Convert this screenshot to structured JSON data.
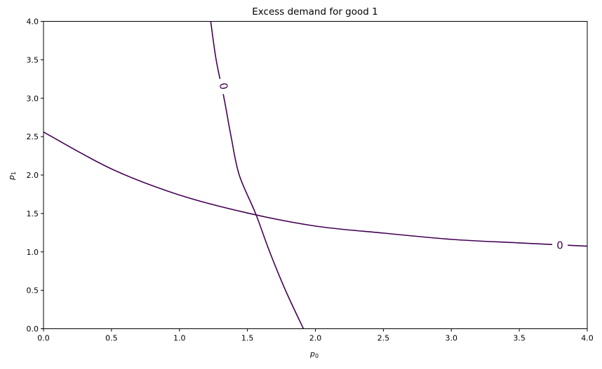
{
  "chart_data": {
    "type": "line",
    "title": "Excess demand for good 1",
    "xlabel": "p",
    "xlabel_sub": "0",
    "ylabel": "p",
    "ylabel_sub": "1",
    "xlim": [
      0,
      4
    ],
    "ylim": [
      0,
      4
    ],
    "xticks": [
      "0.0",
      "0.5",
      "1.0",
      "1.5",
      "2.0",
      "2.5",
      "3.0",
      "3.5",
      "4.0"
    ],
    "yticks": [
      "0.0",
      "0.5",
      "1.0",
      "1.5",
      "2.0",
      "2.5",
      "3.0",
      "3.5",
      "4.0"
    ],
    "grid": false,
    "contour_level": "0",
    "line_color": "#440154",
    "series": [
      {
        "points": [
          [
            1.23,
            4.0
          ],
          [
            1.27,
            3.5
          ],
          [
            1.328,
            3.0
          ],
          [
            1.38,
            2.5
          ],
          [
            1.44,
            2.0
          ],
          [
            1.56,
            1.5
          ],
          [
            1.664,
            1.0
          ],
          [
            1.78,
            0.5
          ],
          [
            1.912,
            0.0
          ]
        ]
      },
      {
        "points": [
          [
            0.0,
            2.56
          ],
          [
            0.5,
            2.08
          ],
          [
            1.0,
            1.74
          ],
          [
            1.5,
            1.506
          ],
          [
            2.0,
            1.336
          ],
          [
            2.5,
            1.245
          ],
          [
            3.0,
            1.163
          ],
          [
            3.5,
            1.117
          ],
          [
            4.0,
            1.075
          ]
        ]
      }
    ]
  }
}
